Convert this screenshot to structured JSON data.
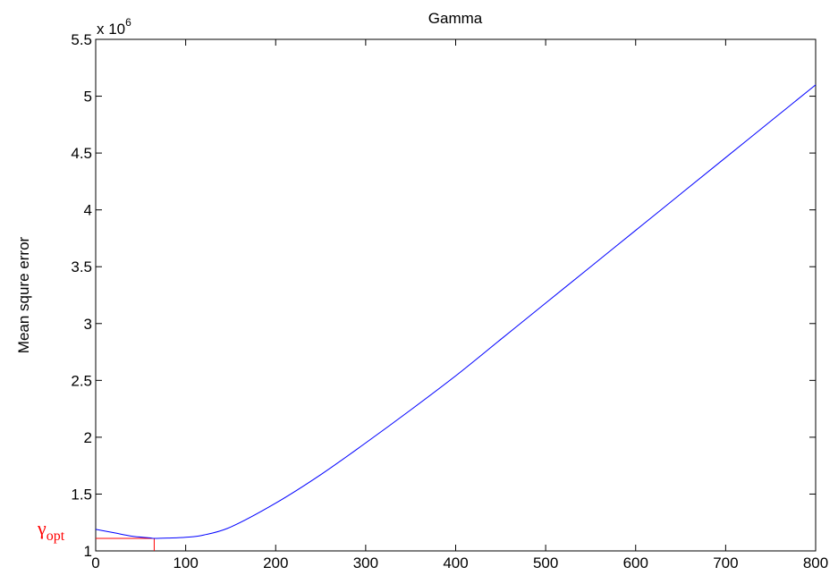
{
  "chart_data": {
    "type": "line",
    "title": "Gamma",
    "xlabel": "",
    "ylabel": "Mean squre error",
    "xlim": [
      0,
      800
    ],
    "ylim": [
      1,
      5.5
    ],
    "y_multiplier": "x 10",
    "y_exponent": "6",
    "grid": false,
    "x_ticks": [
      "0",
      "100",
      "200",
      "300",
      "400",
      "500",
      "600",
      "700",
      "800"
    ],
    "y_ticks": [
      "1",
      "1.5",
      "2",
      "2.5",
      "3",
      "3.5",
      "4",
      "4.5",
      "5",
      "5.5"
    ],
    "series": [
      {
        "color": "#0000ff",
        "x": [
          0,
          20,
          40,
          60,
          65,
          80,
          100,
          120,
          150,
          200,
          250,
          300,
          350,
          400,
          450,
          500,
          550,
          600,
          650,
          700,
          750,
          800
        ],
        "y": [
          1.19,
          1.16,
          1.13,
          1.115,
          1.11,
          1.113,
          1.12,
          1.14,
          1.21,
          1.42,
          1.67,
          1.95,
          2.24,
          2.54,
          2.86,
          3.18,
          3.5,
          3.82,
          4.14,
          4.46,
          4.78,
          5.1
        ]
      }
    ],
    "annotation": {
      "symbol": "γ",
      "subscript": "opt",
      "x": 65,
      "y": 1.11,
      "color": "#ff0000"
    }
  }
}
